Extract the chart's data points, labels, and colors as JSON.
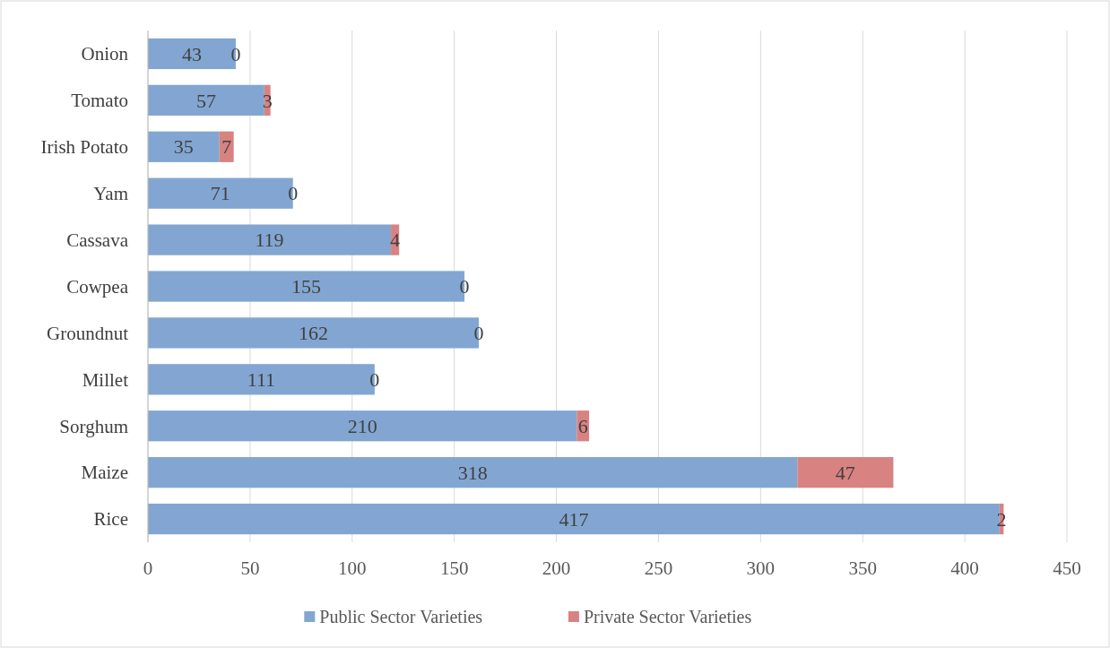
{
  "chart_data": {
    "type": "bar",
    "orientation": "horizontal",
    "stacked": true,
    "categories": [
      "Onion",
      "Tomato",
      "Irish Potato",
      "Yam",
      "Cassava",
      "Cowpea",
      "Groundnut",
      "Millet",
      "Sorghum",
      "Maize",
      "Rice"
    ],
    "series": [
      {
        "name": "Public Sector Varieties",
        "color": "#82a6d1",
        "values": [
          43,
          57,
          35,
          71,
          119,
          155,
          162,
          111,
          210,
          318,
          417
        ]
      },
      {
        "name": "Private Sector Varieties",
        "color": "#d98282",
        "values": [
          0,
          3,
          7,
          0,
          4,
          0,
          0,
          0,
          6,
          47,
          2
        ]
      }
    ],
    "xlim": [
      0,
      450
    ],
    "xticks": [
      0,
      50,
      100,
      150,
      200,
      250,
      300,
      350,
      400,
      450
    ],
    "grid": "x",
    "legend": "bottom",
    "data_labels": true
  }
}
